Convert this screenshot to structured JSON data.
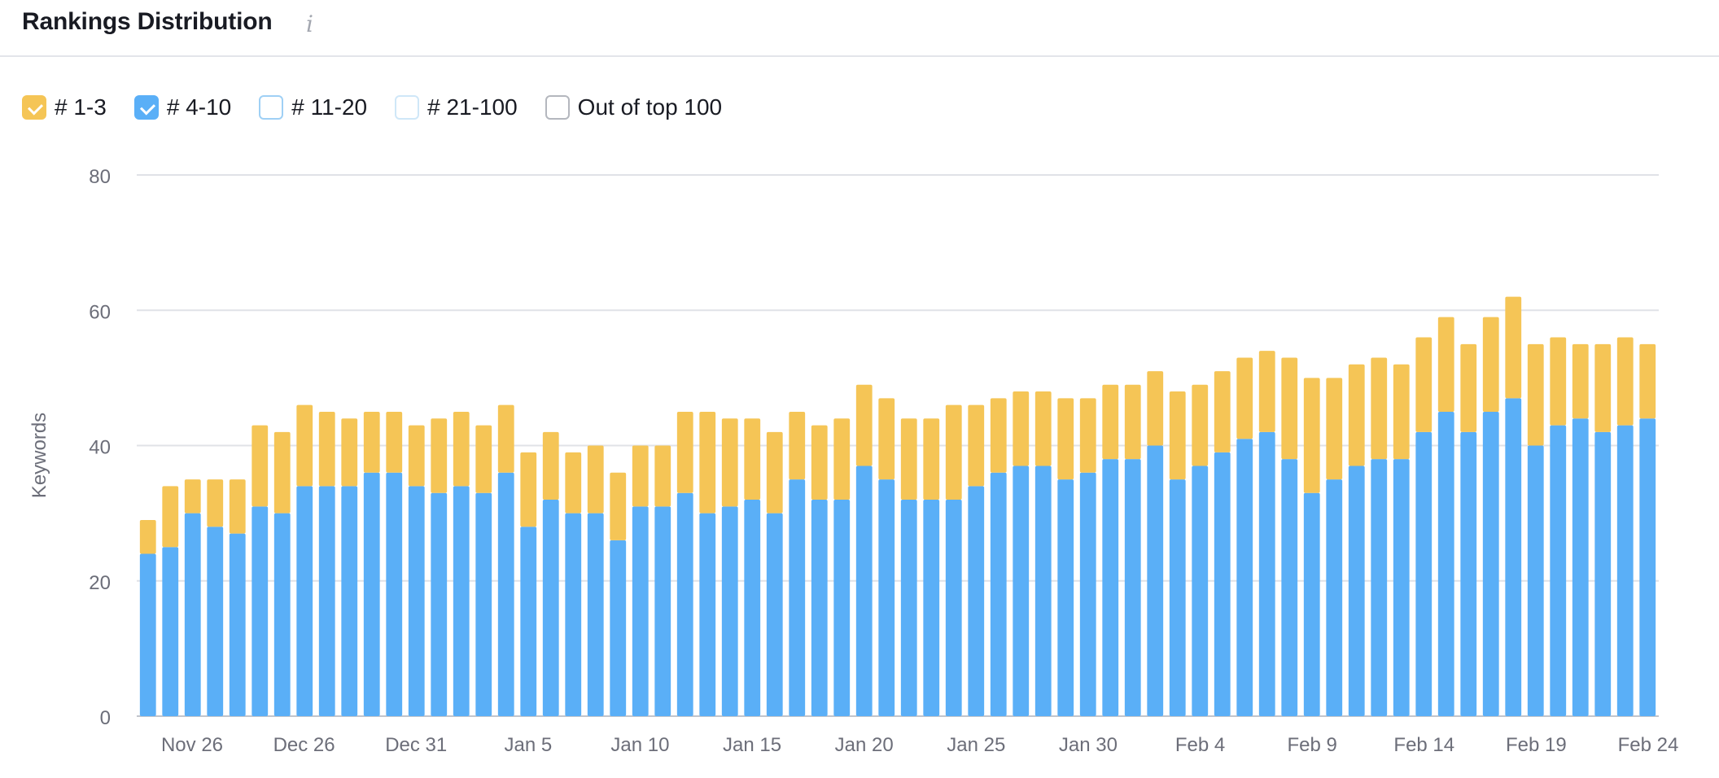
{
  "header": {
    "title": "Rankings Distribution",
    "info_icon": "info-icon"
  },
  "legend": [
    {
      "label": "# 1-3",
      "checked": true,
      "color": "#f5c556",
      "border": "#f5c556"
    },
    {
      "label": "# 4-10",
      "checked": true,
      "color": "#5aaff7",
      "border": "#5aaff7"
    },
    {
      "label": "# 11-20",
      "checked": false,
      "color": "#ffffff",
      "border": "#9fd0f5"
    },
    {
      "label": "# 21-100",
      "checked": false,
      "color": "#ffffff",
      "border": "#cfe7f8"
    },
    {
      "label": "Out of top 100",
      "checked": false,
      "color": "#ffffff",
      "border": "#b4b7be"
    }
  ],
  "chart_data": {
    "type": "bar",
    "stacked": true,
    "ylabel": "Keywords",
    "ylim": [
      0,
      80
    ],
    "yticks": [
      0,
      20,
      40,
      60,
      80
    ],
    "grid": true,
    "x_tick_labels": [
      "Nov 26",
      "Dec 26",
      "Dec 31",
      "Jan 5",
      "Jan 10",
      "Jan 15",
      "Jan 20",
      "Jan 25",
      "Jan 30",
      "Feb 4",
      "Feb 9",
      "Feb 14",
      "Feb 19",
      "Feb 24"
    ],
    "series": [
      {
        "name": "# 4-10",
        "color": "#5aaff7",
        "values": [
          24,
          25,
          30,
          28,
          27,
          31,
          30,
          34,
          34,
          34,
          36,
          36,
          34,
          33,
          34,
          33,
          36,
          28,
          32,
          30,
          30,
          26,
          31,
          31,
          33,
          30,
          31,
          32,
          30,
          35,
          32,
          32,
          37,
          35,
          32,
          32,
          32,
          34,
          36,
          37,
          37,
          35,
          36,
          38,
          38,
          40,
          35,
          37,
          39,
          41,
          42,
          38,
          33,
          35,
          37,
          38,
          38,
          42,
          45,
          42,
          45,
          47,
          40,
          43,
          44,
          42,
          43,
          44
        ]
      },
      {
        "name": "# 1-3",
        "color": "#f5c556",
        "values": [
          5,
          9,
          5,
          7,
          8,
          12,
          12,
          12,
          11,
          10,
          9,
          9,
          9,
          11,
          11,
          10,
          10,
          11,
          10,
          9,
          10,
          10,
          9,
          9,
          12,
          15,
          13,
          12,
          12,
          10,
          11,
          12,
          12,
          12,
          12,
          12,
          14,
          12,
          11,
          11,
          11,
          12,
          11,
          11,
          11,
          11,
          13,
          12,
          12,
          12,
          12,
          15,
          17,
          15,
          15,
          15,
          14,
          14,
          14,
          13,
          14,
          15,
          15,
          13,
          11,
          13,
          13,
          11
        ]
      }
    ]
  }
}
